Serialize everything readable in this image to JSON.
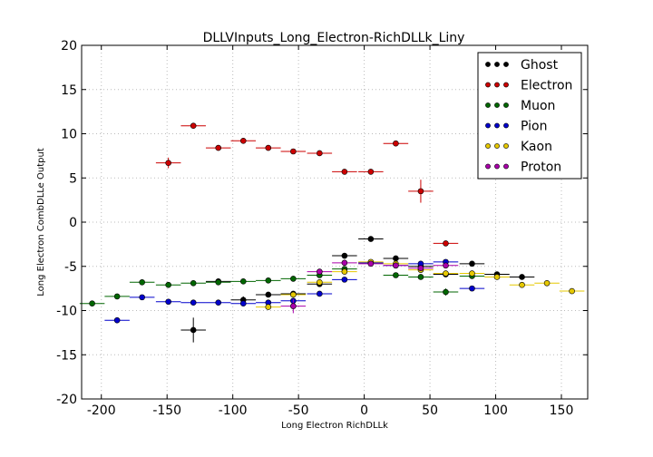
{
  "chart_data": {
    "type": "scatter",
    "title": "DLLVInputs_Long_Electron-RichDLLk_Liny",
    "xlabel": "Long Electron RichDLLk",
    "ylabel": "Long Electron CombDLLe Output",
    "xlim": [
      -215,
      170
    ],
    "ylim": [
      -20,
      20
    ],
    "xticks": [
      -200,
      -150,
      -100,
      -50,
      0,
      50,
      100,
      150
    ],
    "yticks": [
      -20,
      -15,
      -10,
      -5,
      0,
      5,
      10,
      15,
      20
    ],
    "grid": true,
    "legend_position": "top-right",
    "series": [
      {
        "name": "Ghost",
        "color": "#000000",
        "points": [
          {
            "x": -130,
            "y": -12.2,
            "xerr": 9.5,
            "yerr": 1.4
          },
          {
            "x": -111,
            "y": -6.7,
            "xerr": 9.5,
            "yerr": 0.3
          },
          {
            "x": -92,
            "y": -8.8,
            "xerr": 9.5,
            "yerr": 0.4
          },
          {
            "x": -73,
            "y": -8.2,
            "xerr": 9.5,
            "yerr": 0.3
          },
          {
            "x": -54,
            "y": -8.1,
            "xerr": 9.5,
            "yerr": 0.3
          },
          {
            "x": -34,
            "y": -7.0,
            "xerr": 9.5,
            "yerr": 0.3
          },
          {
            "x": -15,
            "y": -3.8,
            "xerr": 9.5,
            "yerr": 0.3
          },
          {
            "x": 5,
            "y": -1.9,
            "xerr": 9.5,
            "yerr": 0.2
          },
          {
            "x": 24,
            "y": -4.1,
            "xerr": 9.5,
            "yerr": 0.2
          },
          {
            "x": 43,
            "y": -5.0,
            "xerr": 9.5,
            "yerr": 0.2
          },
          {
            "x": 62,
            "y": -5.9,
            "xerr": 9.5,
            "yerr": 0.2
          },
          {
            "x": 82,
            "y": -4.7,
            "xerr": 9.5,
            "yerr": 0.2
          },
          {
            "x": 101,
            "y": -5.9,
            "xerr": 9.5,
            "yerr": 0.2
          },
          {
            "x": 120,
            "y": -6.2,
            "xerr": 9.5,
            "yerr": 0.2
          }
        ]
      },
      {
        "name": "Electron",
        "color": "#cc0000",
        "points": [
          {
            "x": -149,
            "y": 6.7,
            "xerr": 9.5,
            "yerr": 0.6
          },
          {
            "x": -130,
            "y": 10.9,
            "xerr": 9.5,
            "yerr": 0.3
          },
          {
            "x": -111,
            "y": 8.4,
            "xerr": 9.5,
            "yerr": 0.2
          },
          {
            "x": -92,
            "y": 9.2,
            "xerr": 9.5,
            "yerr": 0.2
          },
          {
            "x": -73,
            "y": 8.4,
            "xerr": 9.5,
            "yerr": 0.2
          },
          {
            "x": -54,
            "y": 8.0,
            "xerr": 9.5,
            "yerr": 0.2
          },
          {
            "x": -34,
            "y": 7.8,
            "xerr": 9.5,
            "yerr": 0.2
          },
          {
            "x": -15,
            "y": 5.7,
            "xerr": 9.5,
            "yerr": 0.2
          },
          {
            "x": 5,
            "y": 5.7,
            "xerr": 9.5,
            "yerr": 0.2
          },
          {
            "x": 24,
            "y": 8.9,
            "xerr": 9.5,
            "yerr": 0.2
          },
          {
            "x": 43,
            "y": 3.5,
            "xerr": 9.5,
            "yerr": 1.3
          },
          {
            "x": 62,
            "y": -2.4,
            "xerr": 9.5,
            "yerr": 0.2
          }
        ]
      },
      {
        "name": "Muon",
        "color": "#006600",
        "points": [
          {
            "x": -207,
            "y": -9.2,
            "xerr": 9.5,
            "yerr": 0.2
          },
          {
            "x": -188,
            "y": -8.4,
            "xerr": 9.5,
            "yerr": 0.2
          },
          {
            "x": -169,
            "y": -6.8,
            "xerr": 9.5,
            "yerr": 0.2
          },
          {
            "x": -149,
            "y": -7.1,
            "xerr": 9.5,
            "yerr": 0.2
          },
          {
            "x": -130,
            "y": -6.9,
            "xerr": 9.5,
            "yerr": 0.2
          },
          {
            "x": -111,
            "y": -6.8,
            "xerr": 9.5,
            "yerr": 0.2
          },
          {
            "x": -92,
            "y": -6.7,
            "xerr": 9.5,
            "yerr": 0.2
          },
          {
            "x": -73,
            "y": -6.6,
            "xerr": 9.5,
            "yerr": 0.2
          },
          {
            "x": -54,
            "y": -6.4,
            "xerr": 9.5,
            "yerr": 0.2
          },
          {
            "x": -34,
            "y": -6.0,
            "xerr": 9.5,
            "yerr": 0.2
          },
          {
            "x": -15,
            "y": -5.3,
            "xerr": 9.5,
            "yerr": 0.2
          },
          {
            "x": 5,
            "y": -4.6,
            "xerr": 9.5,
            "yerr": 0.2
          },
          {
            "x": 24,
            "y": -6.0,
            "xerr": 9.5,
            "yerr": 0.2
          },
          {
            "x": 43,
            "y": -6.2,
            "xerr": 9.5,
            "yerr": 0.2
          },
          {
            "x": 62,
            "y": -7.9,
            "xerr": 9.5,
            "yerr": 0.4
          },
          {
            "x": 82,
            "y": -6.1,
            "xerr": 9.5,
            "yerr": 0.2
          }
        ]
      },
      {
        "name": "Pion",
        "color": "#0000cc",
        "points": [
          {
            "x": -188,
            "y": -11.1,
            "xerr": 9.5,
            "yerr": 0.2
          },
          {
            "x": -169,
            "y": -8.5,
            "xerr": 9.5,
            "yerr": 0.2
          },
          {
            "x": -149,
            "y": -9.0,
            "xerr": 9.5,
            "yerr": 0.2
          },
          {
            "x": -130,
            "y": -9.1,
            "xerr": 9.5,
            "yerr": 0.2
          },
          {
            "x": -111,
            "y": -9.1,
            "xerr": 9.5,
            "yerr": 0.2
          },
          {
            "x": -92,
            "y": -9.2,
            "xerr": 9.5,
            "yerr": 0.2
          },
          {
            "x": -73,
            "y": -9.1,
            "xerr": 9.5,
            "yerr": 0.2
          },
          {
            "x": -54,
            "y": -8.9,
            "xerr": 9.5,
            "yerr": 0.2
          },
          {
            "x": -34,
            "y": -8.1,
            "xerr": 9.5,
            "yerr": 0.2
          },
          {
            "x": -15,
            "y": -6.5,
            "xerr": 9.5,
            "yerr": 0.2
          },
          {
            "x": 5,
            "y": -4.6,
            "xerr": 9.5,
            "yerr": 0.2
          },
          {
            "x": 24,
            "y": -4.9,
            "xerr": 9.5,
            "yerr": 0.2
          },
          {
            "x": 43,
            "y": -4.7,
            "xerr": 9.5,
            "yerr": 0.2
          },
          {
            "x": 62,
            "y": -4.5,
            "xerr": 9.5,
            "yerr": 0.2
          },
          {
            "x": 82,
            "y": -7.5,
            "xerr": 9.5,
            "yerr": 0.2
          }
        ]
      },
      {
        "name": "Kaon",
        "color": "#e6c800",
        "points": [
          {
            "x": -73,
            "y": -9.6,
            "xerr": 9.5,
            "yerr": 0.3
          },
          {
            "x": -54,
            "y": -8.2,
            "xerr": 9.5,
            "yerr": 0.2
          },
          {
            "x": -34,
            "y": -6.8,
            "xerr": 9.5,
            "yerr": 0.2
          },
          {
            "x": -15,
            "y": -5.6,
            "xerr": 9.5,
            "yerr": 0.2
          },
          {
            "x": 5,
            "y": -4.5,
            "xerr": 9.5,
            "yerr": 0.2
          },
          {
            "x": 24,
            "y": -4.7,
            "xerr": 9.5,
            "yerr": 0.2
          },
          {
            "x": 43,
            "y": -5.4,
            "xerr": 9.5,
            "yerr": 0.2
          },
          {
            "x": 62,
            "y": -5.8,
            "xerr": 9.5,
            "yerr": 0.2
          },
          {
            "x": 82,
            "y": -5.8,
            "xerr": 9.5,
            "yerr": 0.2
          },
          {
            "x": 101,
            "y": -6.2,
            "xerr": 9.5,
            "yerr": 0.2
          },
          {
            "x": 120,
            "y": -7.1,
            "xerr": 9.5,
            "yerr": 0.2
          },
          {
            "x": 139,
            "y": -6.9,
            "xerr": 9.5,
            "yerr": 0.2
          },
          {
            "x": 158,
            "y": -7.8,
            "xerr": 9.5,
            "yerr": 0.2
          }
        ]
      },
      {
        "name": "Proton",
        "color": "#aa00aa",
        "points": [
          {
            "x": -54,
            "y": -9.5,
            "xerr": 9.5,
            "yerr": 0.8
          },
          {
            "x": -34,
            "y": -5.6,
            "xerr": 9.5,
            "yerr": 0.3
          },
          {
            "x": -15,
            "y": -4.6,
            "xerr": 9.5,
            "yerr": 0.2
          },
          {
            "x": 5,
            "y": -4.7,
            "xerr": 9.5,
            "yerr": 0.2
          },
          {
            "x": 24,
            "y": -4.9,
            "xerr": 9.5,
            "yerr": 0.2
          },
          {
            "x": 43,
            "y": -5.2,
            "xerr": 9.5,
            "yerr": 0.2
          },
          {
            "x": 62,
            "y": -4.9,
            "xerr": 9.5,
            "yerr": 0.2
          }
        ]
      }
    ]
  }
}
